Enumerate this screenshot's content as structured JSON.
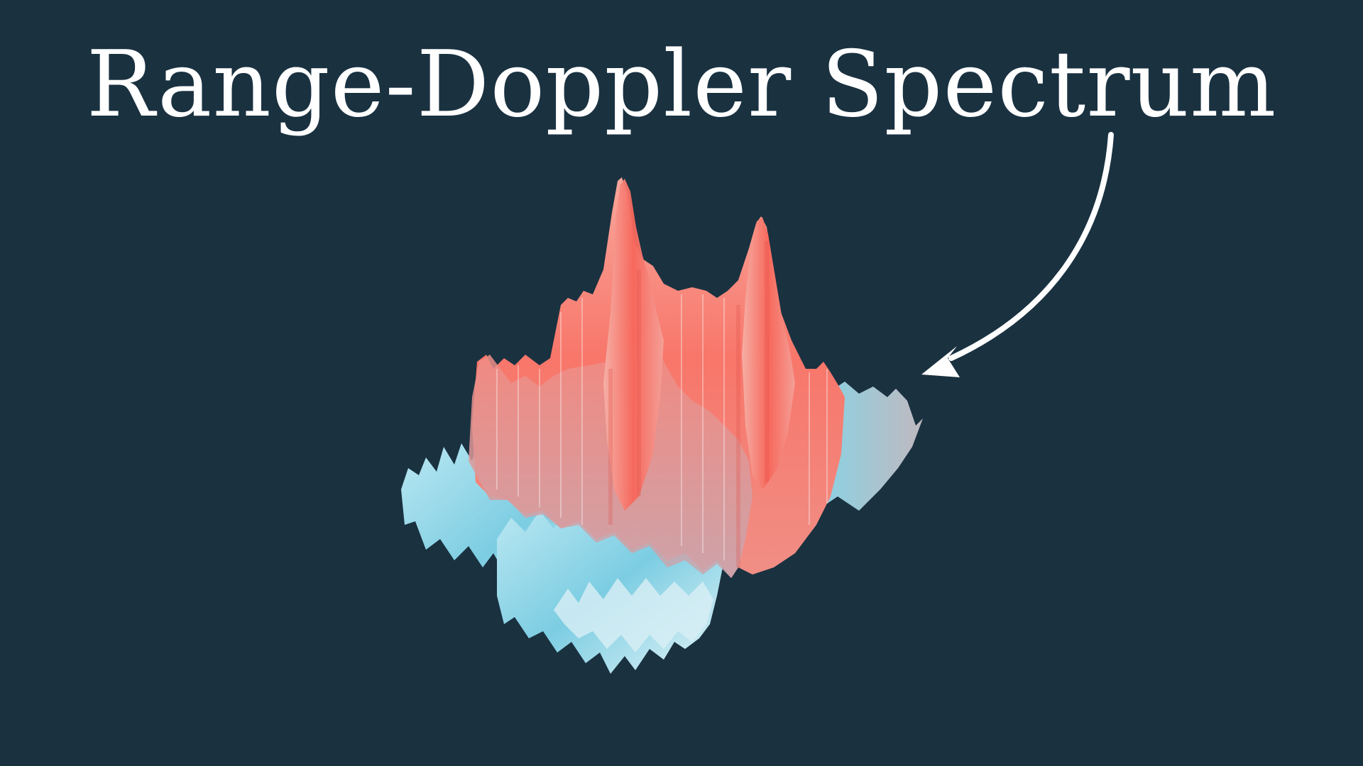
{
  "title": "Range-Doppler Spectrum",
  "colors": {
    "background": "#1a3140",
    "title_text": "#ffffff",
    "arrow": "#ffffff",
    "peak_surface": "#f8766a",
    "noise_surface": "#8fd4e6"
  },
  "graphics": {
    "surface": "range-doppler-surface-plot",
    "arrow": "curved-arrow-icon"
  }
}
